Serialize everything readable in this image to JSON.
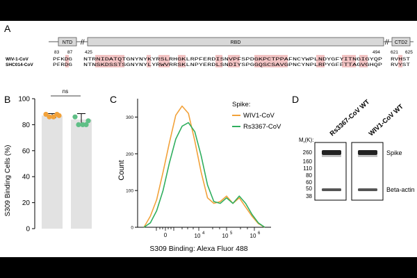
{
  "panelA": {
    "label": "A",
    "domains": [
      "NTD",
      "RBD",
      "CTD2"
    ],
    "positions": [
      "83",
      "87",
      "425",
      "494",
      "621",
      "625"
    ],
    "seq_names": [
      "WIV-1-CoV",
      "SHC014-CoV"
    ],
    "seg1": [
      "PFKDG",
      "PFRDG"
    ],
    "seg2": [
      "NTRNIDATQTGNYNYKYRSLRHGKLRPFERDISNVPFSPDGKPCTPPAFNCYWPLNDYGFYITNGIGYQP",
      "NTNSKDSSTSGNYNYLYRWVRRSKLNPYERDLSNDIYSPGGQSCSAVGPNCYNPLRPYGFFTTAGVGHQP"
    ],
    "seg3": [
      "RVHST",
      "RVYST"
    ]
  },
  "panelB": {
    "label": "B",
    "ylabel": "S309 Binding Cells (%)",
    "yticks": [
      "0",
      "20",
      "40",
      "60",
      "80",
      "100"
    ],
    "sig_label": "ns"
  },
  "panelC": {
    "label": "C",
    "ylabel": "Count",
    "xlabel": "S309 Binding: Alexa Fluor 488",
    "yticks": [
      "0",
      "100",
      "200",
      "300"
    ],
    "xtick_labels": [
      "0",
      "10",
      "10",
      "10"
    ],
    "xtick_exps": [
      "4",
      "5",
      "6"
    ],
    "legend_title": "Spike:",
    "series_names": [
      "WIV1-CoV",
      "Rs3367-CoV"
    ]
  },
  "panelD": {
    "label": "D",
    "lane_labels": [
      "Rs3367-CoV WT",
      "WIV1-CoV WT"
    ],
    "mr_label": "M",
    "mr_sub": "r",
    "mr_unit": "(K):",
    "markers": [
      "260",
      "160",
      "110",
      "80",
      "60",
      "50",
      "38"
    ],
    "band_labels": [
      "Spike",
      "Beta-actin"
    ]
  },
  "colors": {
    "accent_red": "#f3c4c4",
    "orange": "#f2a23a",
    "green": "#2fae5e",
    "bar_gray": "#e2e2e2",
    "dot_green": "#5fbf86"
  },
  "chart_data": [
    {
      "type": "bar",
      "categories": [
        "",
        ""
      ],
      "values": [
        87,
        84
      ],
      "error": [
        1.5,
        4.5
      ],
      "points": [
        [
          88,
          86,
          86,
          88,
          87
        ],
        [
          86,
          80,
          80,
          80,
          83
        ]
      ],
      "ylabel": "S309 Binding Cells (%)",
      "ylim": [
        0,
        100
      ],
      "colors": [
        "#f2a23a",
        "#5fbf86"
      ]
    },
    {
      "type": "line",
      "xlabel": "S309 Binding: Alexa Fluor 488",
      "ylabel": "Count",
      "ylim": [
        0,
        350
      ],
      "x": [
        -0.6,
        -0.4,
        -0.2,
        0,
        0.2,
        0.4,
        0.6,
        0.8,
        1.0,
        1.2,
        1.4,
        1.6,
        1.8,
        2.0,
        2.2,
        2.4,
        2.6,
        2.8,
        3.0,
        3.2
      ],
      "series": [
        {
          "name": "WIV1-CoV",
          "values": [
            0,
            30,
            75,
            150,
            230,
            305,
            330,
            310,
            235,
            150,
            80,
            65,
            70,
            85,
            65,
            80,
            55,
            30,
            10,
            0
          ]
        },
        {
          "name": "Rs3367-CoV",
          "values": [
            0,
            12,
            45,
            100,
            175,
            240,
            275,
            285,
            260,
            195,
            115,
            70,
            65,
            80,
            65,
            85,
            65,
            35,
            12,
            0
          ]
        }
      ]
    }
  ]
}
